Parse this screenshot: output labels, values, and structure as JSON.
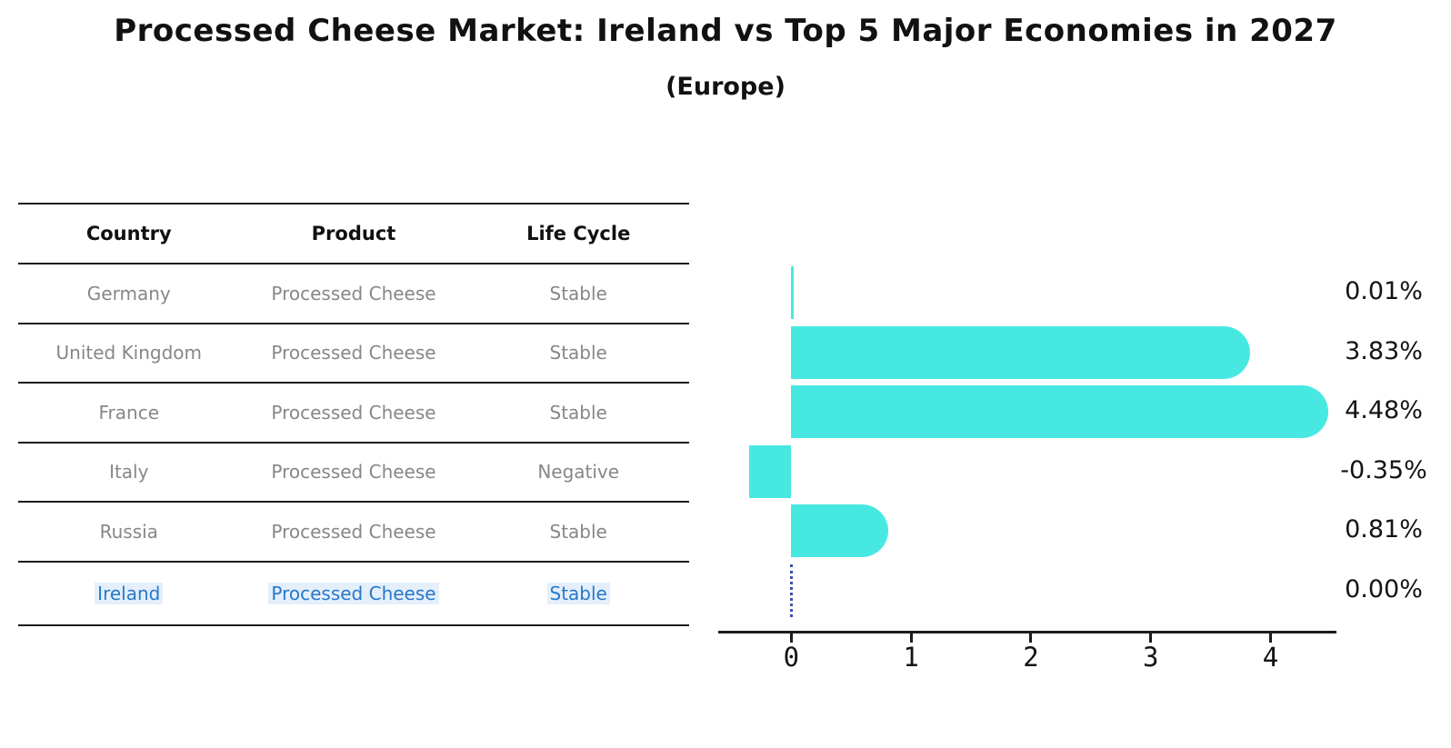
{
  "title": "Processed Cheese Market: Ireland vs Top 5 Major Economies in 2027",
  "subtitle": "(Europe)",
  "table": {
    "headers": [
      "Country",
      "Product",
      "Life Cycle"
    ],
    "rows": [
      {
        "country": "Germany",
        "product": "Processed Cheese",
        "life_cycle": "Stable",
        "highlight": false
      },
      {
        "country": "United Kingdom",
        "product": "Processed Cheese",
        "life_cycle": "Stable",
        "highlight": false
      },
      {
        "country": "France",
        "product": "Processed Cheese",
        "life_cycle": "Stable",
        "highlight": false
      },
      {
        "country": "Italy",
        "product": "Processed Cheese",
        "life_cycle": "Negative",
        "highlight": false
      },
      {
        "country": "Russia",
        "product": "Processed Cheese",
        "life_cycle": "Stable",
        "highlight": false
      },
      {
        "country": "Ireland",
        "product": "Processed Cheese",
        "life_cycle": "Stable",
        "highlight": true
      }
    ]
  },
  "chart_data": {
    "type": "bar",
    "orientation": "horizontal",
    "categories": [
      "Germany",
      "United Kingdom",
      "France",
      "Italy",
      "Russia",
      "Ireland"
    ],
    "values": [
      0.01,
      3.83,
      4.48,
      -0.35,
      0.81,
      0.0
    ],
    "value_labels": [
      "0.01%",
      "3.83%",
      "4.48%",
      "-0.35%",
      "0.81%",
      "0.00%"
    ],
    "xticks": [
      "0",
      "1",
      "2",
      "3",
      "4"
    ],
    "xtick_values": [
      0,
      1,
      2,
      3,
      4
    ],
    "xlim": [
      -0.61,
      4.55
    ],
    "grid": false,
    "legend": "none",
    "bar_color": "#48e8e2",
    "zero_marker_color": "#3f51a8",
    "highlight_text_color": "#2878c8",
    "units": "percent CAGR"
  }
}
